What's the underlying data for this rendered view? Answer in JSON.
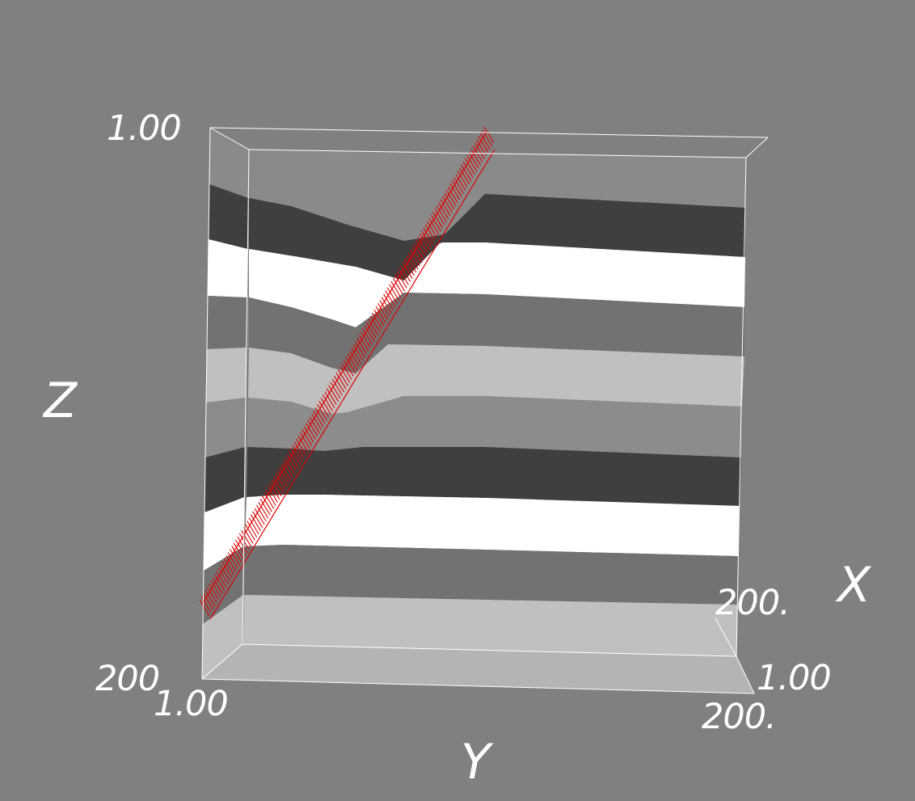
{
  "viewer": {
    "background": "#808080",
    "box_color": "#ffffff",
    "trace_color": "#e00000"
  },
  "axes": {
    "x": {
      "label": "X",
      "ticks": [
        "200.",
        "1.00"
      ]
    },
    "y": {
      "label": "Y",
      "ticks": [
        "1.00",
        "200."
      ]
    },
    "z": {
      "label": "Z",
      "ticks": [
        "1.00",
        "200"
      ]
    }
  },
  "volume": {
    "layer_colors": [
      "#8a8a8a",
      "#3f3f3f",
      "#ffffff",
      "#727272",
      "#c0c0c0",
      "#8c8c8c",
      "#3f3f3f",
      "#ffffff",
      "#727272",
      "#c0c0c0"
    ]
  }
}
